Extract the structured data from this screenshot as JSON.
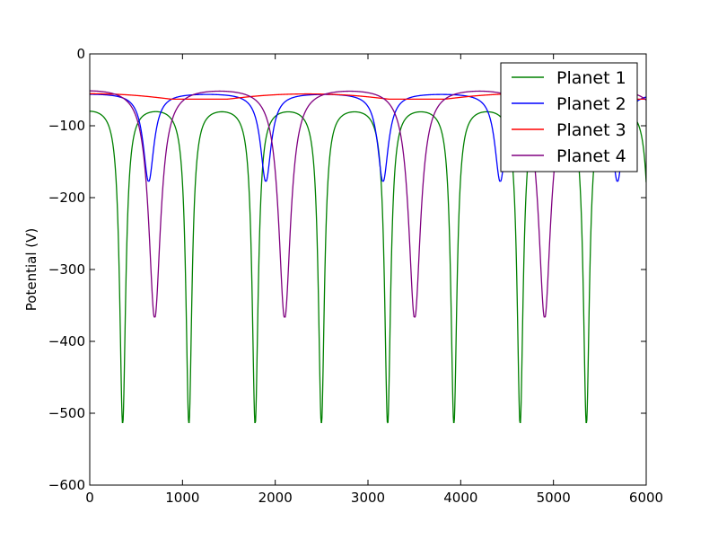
{
  "chart_data": {
    "type": "line",
    "title": "",
    "xlabel": "",
    "ylabel": "Potential (V)",
    "xlim": [
      0,
      6000
    ],
    "ylim": [
      -600,
      0
    ],
    "xticks": [
      0,
      1000,
      2000,
      3000,
      4000,
      5000,
      6000
    ],
    "yticks": [
      0,
      -100,
      -200,
      -300,
      -400,
      -500,
      -600
    ],
    "xtick_labels": [
      "0",
      "1000",
      "2000",
      "3000",
      "4000",
      "5000",
      "6000"
    ],
    "ytick_labels": [
      "0",
      "−100",
      "−200",
      "−300",
      "−400",
      "−500",
      "−600"
    ],
    "grid": false,
    "legend_position": "top-right",
    "series": [
      {
        "name": "Planet 1",
        "color": "#008000",
        "baseline": -68,
        "minimum": -513,
        "dip_centers": [
          355,
          1070,
          1785,
          2500,
          3215,
          3925,
          4640,
          5355
        ]
      },
      {
        "name": "Planet 2",
        "color": "#0000ff",
        "baseline": -53,
        "minimum": -177,
        "dip_centers": [
          635,
          1895,
          3160,
          4425,
          5690
        ]
      },
      {
        "name": "Planet 3",
        "color": "#ff0000",
        "baseline": -47,
        "minimum": -63,
        "dip_centers": [
          1180,
          3530
        ]
      },
      {
        "name": "Planet 4",
        "color": "#800080",
        "baseline": -43,
        "minimum": -366,
        "dip_centers": [
          700,
          2105,
          3510,
          4905
        ]
      }
    ]
  }
}
